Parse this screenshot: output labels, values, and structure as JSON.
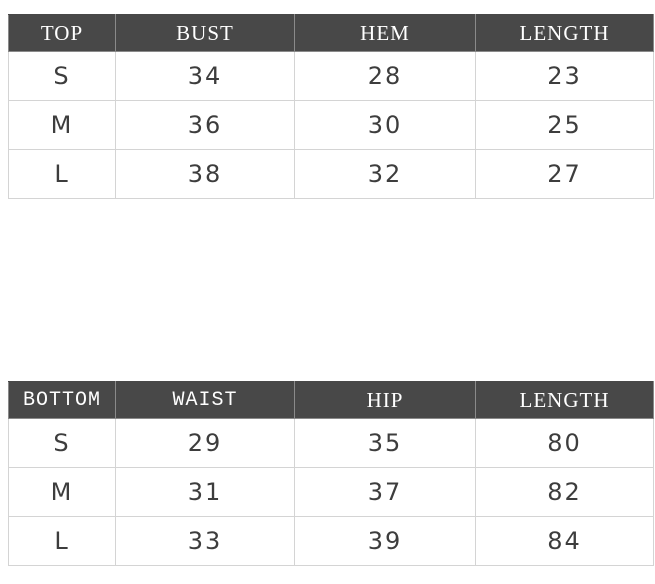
{
  "colors": {
    "page_bg": "#ffffff",
    "header_bg": "#484848",
    "header_text": "#ffffff",
    "header_grid": "#8a8a8a",
    "grid_line": "#d4d4d4",
    "body_text": "#3d3d3d"
  },
  "chart_data": [
    {
      "type": "table",
      "columns": [
        "TOP",
        "BUST",
        "HEM",
        "LENGTH"
      ],
      "rows": [
        [
          "S",
          "34",
          "28",
          "23"
        ],
        [
          "M",
          "36",
          "30",
          "25"
        ],
        [
          "L",
          "38",
          "32",
          "27"
        ]
      ]
    },
    {
      "type": "table",
      "columns": [
        "BOTTOM",
        "WAIST",
        "HIP",
        "LENGTH"
      ],
      "rows": [
        [
          "S",
          "29",
          "35",
          "80"
        ],
        [
          "M",
          "31",
          "37",
          "82"
        ],
        [
          "L",
          "33",
          "39",
          "84"
        ]
      ]
    }
  ]
}
